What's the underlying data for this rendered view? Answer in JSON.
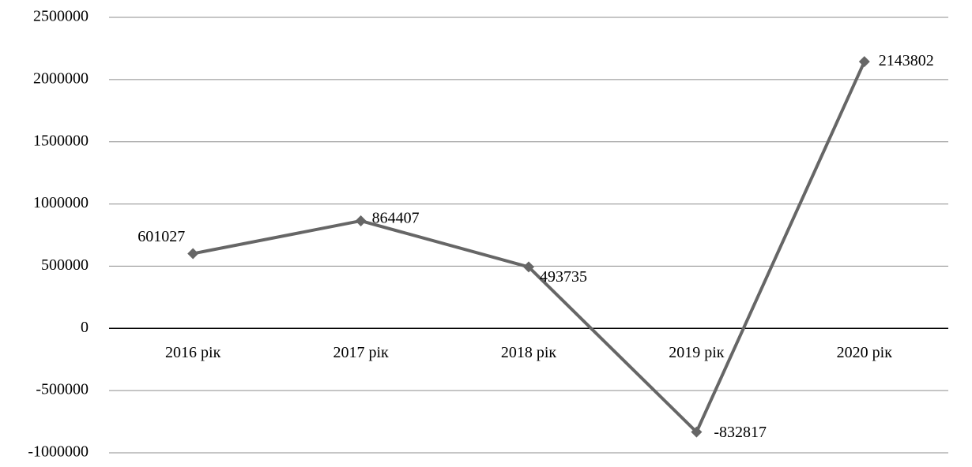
{
  "chart_data": {
    "type": "line",
    "categories": [
      "2016 рік",
      "2017 рік",
      "2018 рік",
      "2019 рік",
      "2020 рік"
    ],
    "series": [
      {
        "name": "",
        "color": "#666666",
        "values": [
          601027,
          864407,
          493735,
          -832817,
          2143802
        ]
      }
    ],
    "ylim": [
      -1000000,
      2500000
    ],
    "yticks": [
      -1000000,
      -500000,
      0,
      500000,
      1000000,
      1500000,
      2000000,
      2500000
    ],
    "grid": true
  }
}
